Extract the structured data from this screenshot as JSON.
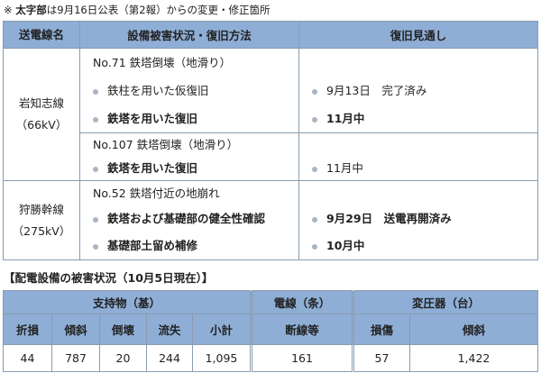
{
  "note": {
    "mark": "※",
    "bold": "太字部",
    "rest": "は9月16日公表（第2報）からの変更・修正箇所"
  },
  "table1": {
    "headers": [
      "送電線名",
      "設備被害状況・復旧方法",
      "復旧見通し"
    ],
    "lines": [
      {
        "name": [
          "岩知志線",
          "（66kV）"
        ],
        "blocks": [
          {
            "title": "No.71 鉄塔倒壊（地滑り）",
            "items": [
              {
                "method": "鉄柱を用いた仮復旧",
                "bold": false,
                "outlook": "9月13日　完了済み",
                "outlook_bold": false
              },
              {
                "method": "鉄塔を用いた復旧",
                "bold": true,
                "outlook": "11月中",
                "outlook_bold": true
              }
            ]
          },
          {
            "title": "No.107 鉄塔倒壊（地滑り）",
            "items": [
              {
                "method": "鉄塔を用いた復旧",
                "bold": true,
                "outlook": "11月中",
                "outlook_bold": false
              }
            ]
          }
        ]
      },
      {
        "name": [
          "狩勝幹線",
          "（275kV）"
        ],
        "blocks": [
          {
            "title": "No.52 鉄塔付近の地崩れ",
            "items": [
              {
                "method": "鉄塔および基礎部の健全性確認",
                "bold": true,
                "outlook": "9月29日　送電再開済み",
                "outlook_bold": true
              },
              {
                "method": "基礎部土留め補修",
                "bold": true,
                "outlook": "10月中",
                "outlook_bold": true
              }
            ]
          }
        ]
      }
    ]
  },
  "table2": {
    "title": "【配電設備の被害状況（10月5日現在）】",
    "groups": [
      "支持物（基）",
      "電線（条）",
      "変圧器（台）"
    ],
    "subheaders": [
      "折損",
      "傾斜",
      "倒壊",
      "流失",
      "小計",
      "断線等",
      "損傷",
      "傾斜"
    ],
    "values": [
      "44",
      "787",
      "20",
      "244",
      "1,095",
      "161",
      "57",
      "1,422"
    ]
  },
  "colors": {
    "header_bg": "#8eaed6",
    "border": "#8a9bb0",
    "bullet": "#a9b5c2"
  }
}
